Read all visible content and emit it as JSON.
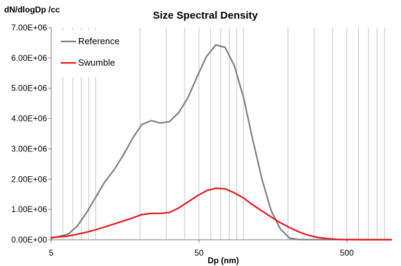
{
  "chart_data": {
    "type": "line",
    "title": "Size Spectral Density",
    "ylabel": "dN/dlogDp  /cc",
    "xlabel": "Dp (nm)",
    "x_scale": "log",
    "xlim": [
      5,
      1000
    ],
    "ylim": [
      0,
      7000000
    ],
    "x_ticks": [
      5,
      50,
      500
    ],
    "x_tick_labels": [
      "5",
      "50",
      "500"
    ],
    "y_ticks": [
      0,
      1000000,
      2000000,
      3000000,
      4000000,
      5000000,
      6000000,
      7000000
    ],
    "y_tick_labels": [
      "0.00E+00",
      "1.00E+06",
      "2.00E+06",
      "3.00E+06",
      "4.00E+06",
      "5.00E+06",
      "6.00E+06",
      "7.00E+06"
    ],
    "grid": {
      "vertical_minor": true,
      "horizontal": false
    },
    "legend_position": "top-left",
    "series": [
      {
        "name": "Reference",
        "color": "#7f7f7f",
        "x": [
          5,
          6.5,
          7.5,
          8.7,
          10,
          11.5,
          13.3,
          15.4,
          17.8,
          20.5,
          23.7,
          27.4,
          31.6,
          36.5,
          42.2,
          48.7,
          56.2,
          65,
          75,
          86.6,
          100,
          115.5,
          133.4,
          154,
          177.8,
          205.4,
          237.1,
          273.8,
          316.2,
          365.2,
          421.7,
          486.9,
          562.3,
          649.4,
          749.9,
          866,
          1000
        ],
        "values": [
          50000,
          180000,
          450000,
          900000,
          1400000,
          1900000,
          2300000,
          2800000,
          3350000,
          3800000,
          3930000,
          3850000,
          3900000,
          4200000,
          4700000,
          5400000,
          6050000,
          6430000,
          6350000,
          5750000,
          4700000,
          3300000,
          2000000,
          950000,
          350000,
          50000,
          10000,
          5000,
          5000,
          5000,
          5000,
          5000,
          5000,
          5000,
          5000,
          5000,
          5000
        ]
      },
      {
        "name": "Swumble",
        "color": "#e8161b",
        "x": [
          5,
          6.5,
          7.5,
          8.7,
          10,
          11.5,
          13.3,
          15.4,
          17.8,
          20.5,
          23.7,
          27.4,
          31.6,
          36.5,
          42.2,
          48.7,
          56.2,
          65,
          75,
          86.6,
          100,
          115.5,
          133.4,
          154,
          177.8,
          205.4,
          237.1,
          273.8,
          316.2,
          365.2,
          421.7,
          486.9,
          562.3,
          649.4,
          749.9,
          866,
          1000
        ],
        "values": [
          70000,
          120000,
          180000,
          250000,
          330000,
          420000,
          520000,
          620000,
          720000,
          830000,
          870000,
          870000,
          900000,
          1050000,
          1250000,
          1450000,
          1620000,
          1700000,
          1680000,
          1550000,
          1380000,
          1150000,
          950000,
          750000,
          560000,
          400000,
          260000,
          150000,
          80000,
          40000,
          15000,
          5000,
          2000,
          0,
          0,
          0,
          0
        ]
      }
    ]
  }
}
